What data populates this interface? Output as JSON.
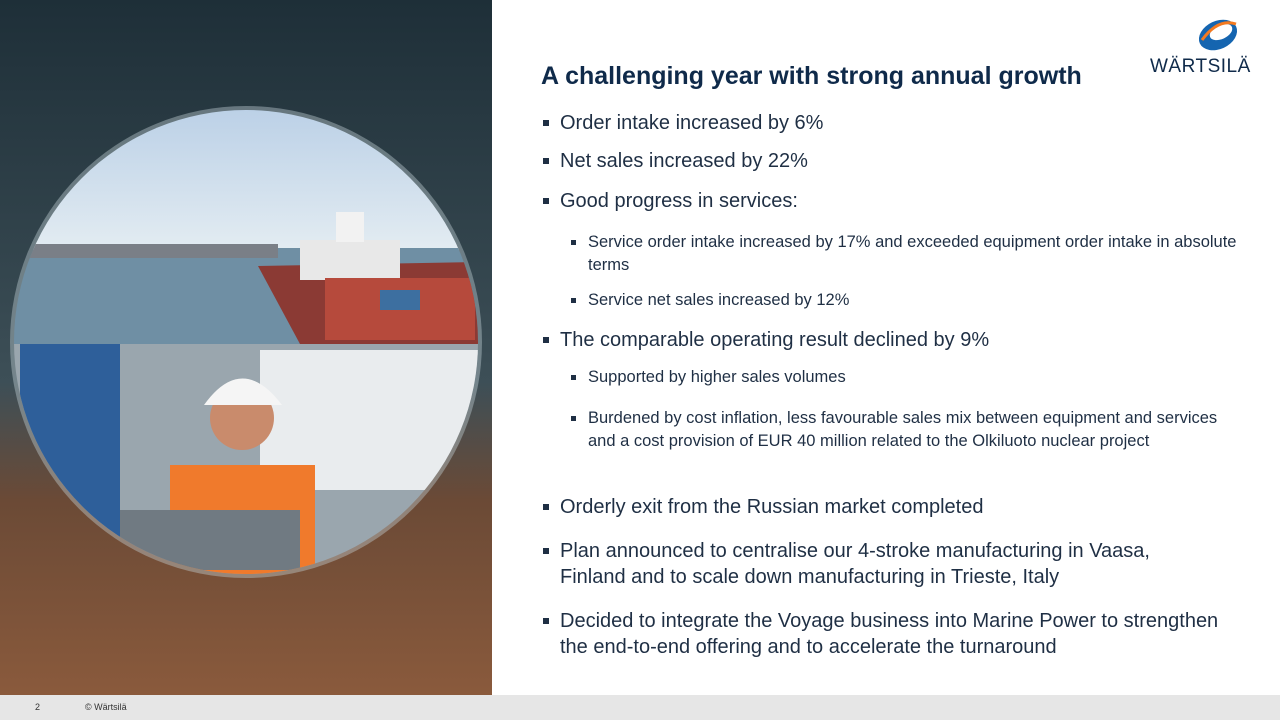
{
  "header": {
    "title": "A challenging year with strong annual growth",
    "logo": "WÄRTSILÄ"
  },
  "bullets": [
    {
      "text": "Order intake increased by 6%"
    },
    {
      "text": "Net sales increased by 22%"
    },
    {
      "text": "Good progress in services:",
      "sub": [
        "Service order intake increased by 17% and exceeded equipment order intake in absolute terms",
        "Service net sales increased by 12%"
      ]
    },
    {
      "text": "The comparable operating result declined by 9%",
      "sub": [
        "Supported by higher sales volumes",
        "Burdened by cost inflation, less favourable sales mix between equipment and services and a cost provision of EUR 40 million related to the Olkiluoto nuclear project"
      ]
    },
    {
      "text": "Orderly exit from the Russian market completed"
    },
    {
      "text": "Plan announced to centralise our 4-stroke manufacturing in Vaasa, Finland and to scale down manufacturing in Trieste, Italy"
    },
    {
      "text": "Decided to integrate the Voyage business into Marine Power to strengthen the end-to-end offering and to accelerate the turnaround"
    }
  ],
  "footer": {
    "page": "2",
    "copyright": "© Wärtsilä"
  }
}
